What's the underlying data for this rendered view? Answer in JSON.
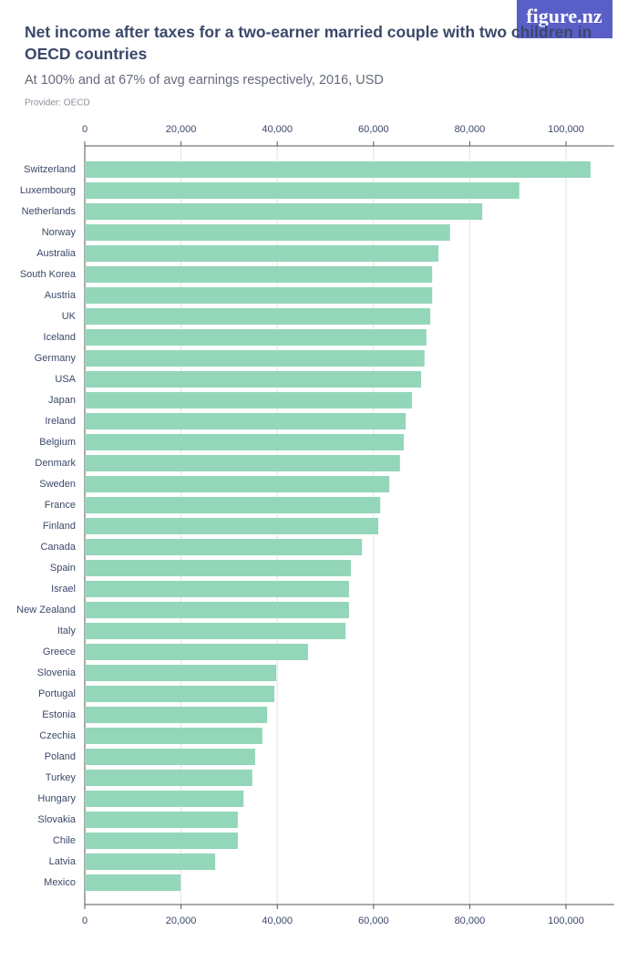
{
  "logo": "figure.nz",
  "chart_data": {
    "type": "bar",
    "orientation": "horizontal",
    "title": "Net income after taxes for a two-earner married couple with two children in OECD countries",
    "subtitle": "At 100% and at 67% of avg earnings respectively, 2016, USD",
    "source": "Provider: OECD",
    "categories": [
      "Switzerland",
      "Luxembourg",
      "Netherlands",
      "Norway",
      "Australia",
      "South Korea",
      "Austria",
      "UK",
      "Iceland",
      "Germany",
      "USA",
      "Japan",
      "Ireland",
      "Belgium",
      "Denmark",
      "Sweden",
      "France",
      "Finland",
      "Canada",
      "Spain",
      "Israel",
      "New Zealand",
      "Italy",
      "Greece",
      "Slovenia",
      "Portugal",
      "Estonia",
      "Czechia",
      "Poland",
      "Turkey",
      "Hungary",
      "Slovakia",
      "Chile",
      "Latvia",
      "Mexico"
    ],
    "values": [
      105100,
      90300,
      82600,
      75900,
      73500,
      72200,
      72200,
      71800,
      71000,
      70600,
      69900,
      68000,
      66700,
      66300,
      65500,
      63300,
      61400,
      61000,
      57600,
      55300,
      54900,
      54900,
      54200,
      46400,
      39800,
      39400,
      37900,
      36900,
      35400,
      34800,
      33000,
      31800,
      31800,
      27100,
      19900
    ],
    "color": "#94d6b9",
    "xlim": [
      0,
      110000
    ],
    "xticks": [
      0,
      {
        "value": 20000,
        "label": "20,000"
      },
      {
        "value": 40000,
        "label": "40,000"
      },
      {
        "value": 60000,
        "label": "60,000"
      },
      {
        "value": 80000,
        "label": "80,000"
      },
      {
        "value": 100000,
        "label": "100,000"
      }
    ],
    "grid": true
  }
}
